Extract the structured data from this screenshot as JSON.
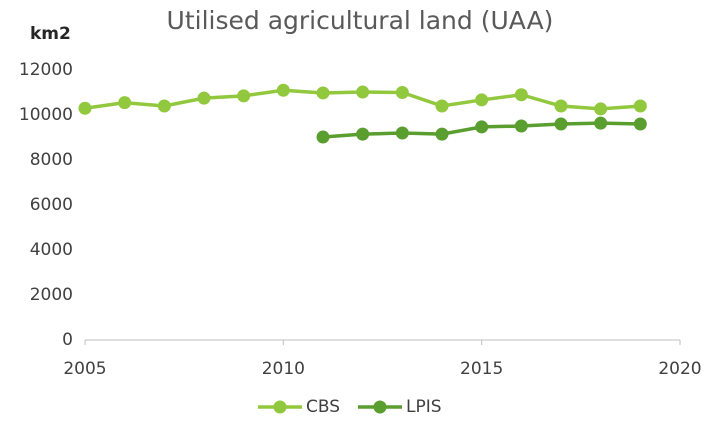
{
  "chart_data": {
    "type": "line",
    "title": "Utilised agricultural land (UAA)",
    "y_label": "km2",
    "x": [
      2005,
      2006,
      2007,
      2008,
      2009,
      2010,
      2011,
      2012,
      2013,
      2014,
      2015,
      2016,
      2017,
      2018,
      2019
    ],
    "series": [
      {
        "name": "CBS",
        "color": "#92c83e",
        "values": [
          10300,
          10550,
          10400,
          10750,
          10850,
          11100,
          10980,
          11020,
          11000,
          10400,
          10670,
          10900,
          10400,
          10270,
          10400
        ]
      },
      {
        "name": "LPIS",
        "color": "#5a9e2f",
        "values": [
          null,
          null,
          null,
          null,
          null,
          null,
          9020,
          9150,
          9200,
          9150,
          9470,
          9510,
          9600,
          9640,
          9600
        ]
      }
    ],
    "xlim": [
      2005,
      2020
    ],
    "xticks": [
      2005,
      2010,
      2015,
      2020
    ],
    "ylim": [
      0,
      12000
    ],
    "yticks": [
      0,
      2000,
      4000,
      6000,
      8000,
      10000,
      12000
    ],
    "grid": false,
    "legend": "bottom"
  }
}
